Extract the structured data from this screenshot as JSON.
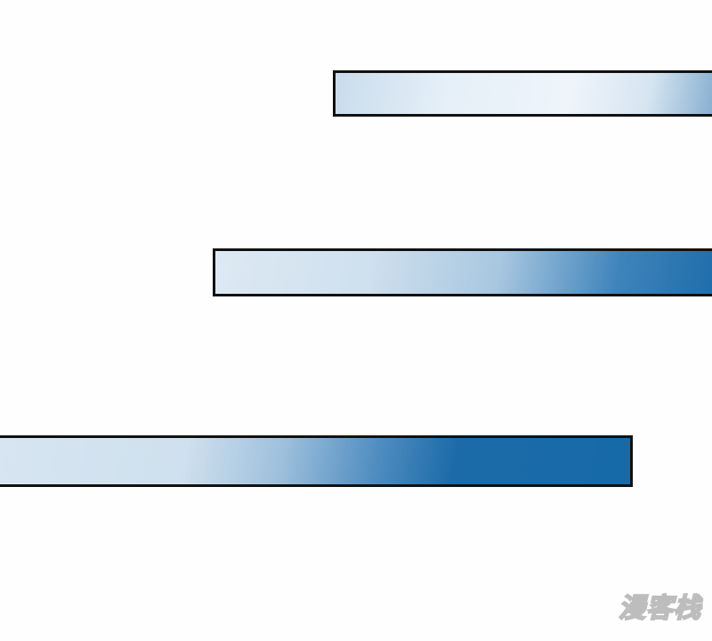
{
  "panel": {
    "bars": [
      {
        "gradient_colors": [
          "#c9dcec",
          "#eef4fa",
          "#7aa6cb"
        ]
      },
      {
        "gradient_colors": [
          "#dde9f3",
          "#a8c7e0",
          "#1a6aa8"
        ]
      },
      {
        "gradient_colors": [
          "#d6e5f1",
          "#4f8dc0",
          "#166aa8"
        ]
      }
    ],
    "border_color": "#111111",
    "watermark": "漫客栈"
  }
}
